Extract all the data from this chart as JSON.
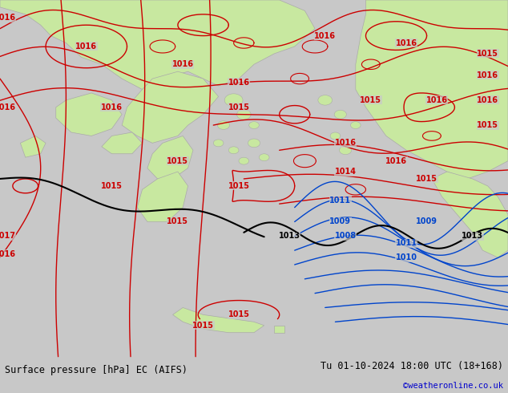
{
  "title_left": "Surface pressure [hPa] EC (AIFS)",
  "title_right": "Tu 01-10-2024 18:00 UTC (18+168)",
  "credit": "©weatheronline.co.uk",
  "bg_color": "#c8c8c8",
  "map_bg": "#c8c8c8",
  "land_green": "#c8e8a0",
  "land_border": "#aaaaaa",
  "bottom_bar_color": "#e0e0e0",
  "bottom_text_color": "#000000",
  "credit_color": "#0000cc",
  "figsize": [
    6.34,
    4.9
  ],
  "dpi": 100,
  "red_color": "#cc0000",
  "black_color": "#000000",
  "blue_color": "#0044cc",
  "label_fontsize": 7.0
}
